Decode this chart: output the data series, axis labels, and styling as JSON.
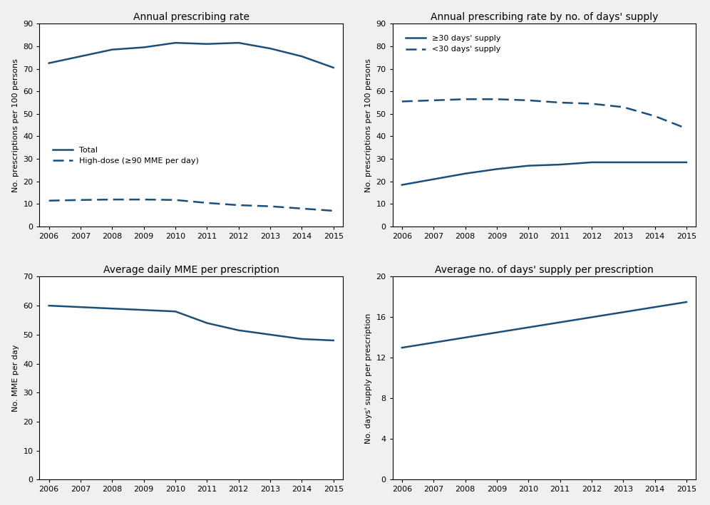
{
  "years": [
    2006,
    2007,
    2008,
    2009,
    2010,
    2011,
    2012,
    2013,
    2014,
    2015
  ],
  "plot1_title": "Annual prescribing rate",
  "plot1_ylabel": "No. prescriptions per 100 persons",
  "plot1_total": [
    72.5,
    75.5,
    78.5,
    79.5,
    81.5,
    81.0,
    81.5,
    79.0,
    75.5,
    70.5
  ],
  "plot1_highdose": [
    11.5,
    11.8,
    12.0,
    12.0,
    11.8,
    10.5,
    9.5,
    9.0,
    8.0,
    7.0
  ],
  "plot1_legend1": "Total",
  "plot1_legend2": "High-dose (≥90 MME per day)",
  "plot2_title": "Annual prescribing rate by no. of days' supply",
  "plot2_ylabel": "No. prescriptions per 100 persons",
  "plot2_ge30": [
    18.5,
    21.0,
    23.5,
    25.5,
    27.0,
    27.5,
    28.5,
    28.5,
    28.5,
    28.5
  ],
  "plot2_lt30": [
    55.5,
    56.0,
    56.5,
    56.5,
    56.0,
    55.0,
    54.5,
    53.0,
    49.0,
    43.5
  ],
  "plot2_legend1": "≥30 days' supply",
  "plot2_legend2": "<30 days' supply",
  "plot3_title": "Average daily MME per prescription",
  "plot3_ylabel": "No. MME per day",
  "plot3_data": [
    60.0,
    59.5,
    59.0,
    58.5,
    58.0,
    54.0,
    51.5,
    50.0,
    48.5,
    48.0
  ],
  "plot4_title": "Average no. of days' supply per prescription",
  "plot4_ylabel": "No. days' supply per prescription",
  "plot4_data": [
    13.0,
    13.5,
    14.0,
    14.5,
    15.0,
    15.5,
    16.0,
    16.5,
    17.0,
    17.5
  ],
  "line_color": "#1B4F7A",
  "title_color": "#000000",
  "background_color": "#ffffff",
  "fig_background": "#f0f0f0",
  "linewidth": 1.8
}
